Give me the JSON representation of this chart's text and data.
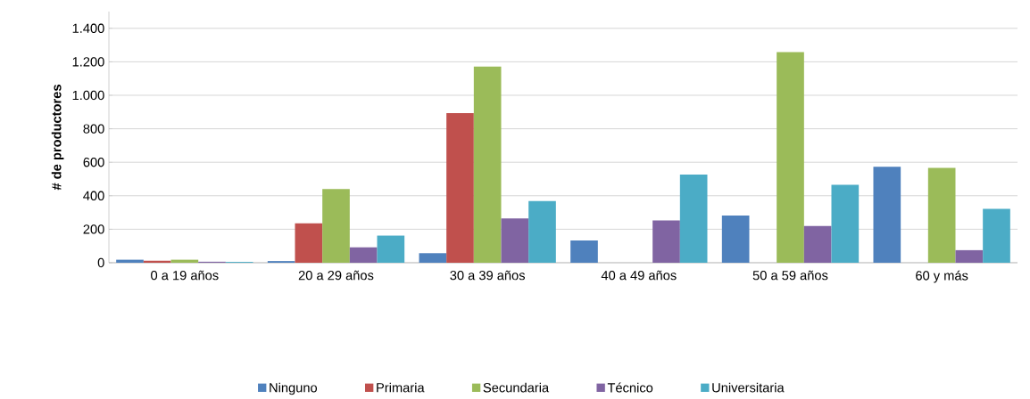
{
  "chart_data": {
    "type": "bar",
    "ylabel": "# de productores",
    "categories": [
      "0 a 19 años",
      "20 a 29 años",
      "30 a 39 años",
      "40 a 49 años",
      "50 a 59 años",
      "60 y más"
    ],
    "series": [
      {
        "name": "Ninguno",
        "color": "#4f81bd",
        "values": [
          18,
          10,
          57,
          133,
          282,
          573
        ]
      },
      {
        "name": "Primaria",
        "color": "#c0504d",
        "values": [
          12,
          235,
          893,
          null,
          null,
          null
        ]
      },
      {
        "name": "Secundaria",
        "color": "#9bbb59",
        "values": [
          18,
          440,
          1172,
          null,
          1258,
          567
        ]
      },
      {
        "name": "Técnico",
        "color": "#8064a2",
        "values": [
          6,
          92,
          265,
          252,
          220,
          75
        ]
      },
      {
        "name": "Universitaria",
        "color": "#4bacc6",
        "values": [
          5,
          162,
          368,
          527,
          465,
          322
        ]
      }
    ],
    "ylim": [
      0,
      1500
    ],
    "yticks": [
      0,
      200,
      400,
      600,
      800,
      {
        "value": 1000,
        "label": "1.000"
      },
      {
        "value": 1200,
        "label": "1.200"
      },
      {
        "value": 1400,
        "label": "1.400"
      }
    ],
    "grid": "y",
    "legend": "bottom"
  }
}
